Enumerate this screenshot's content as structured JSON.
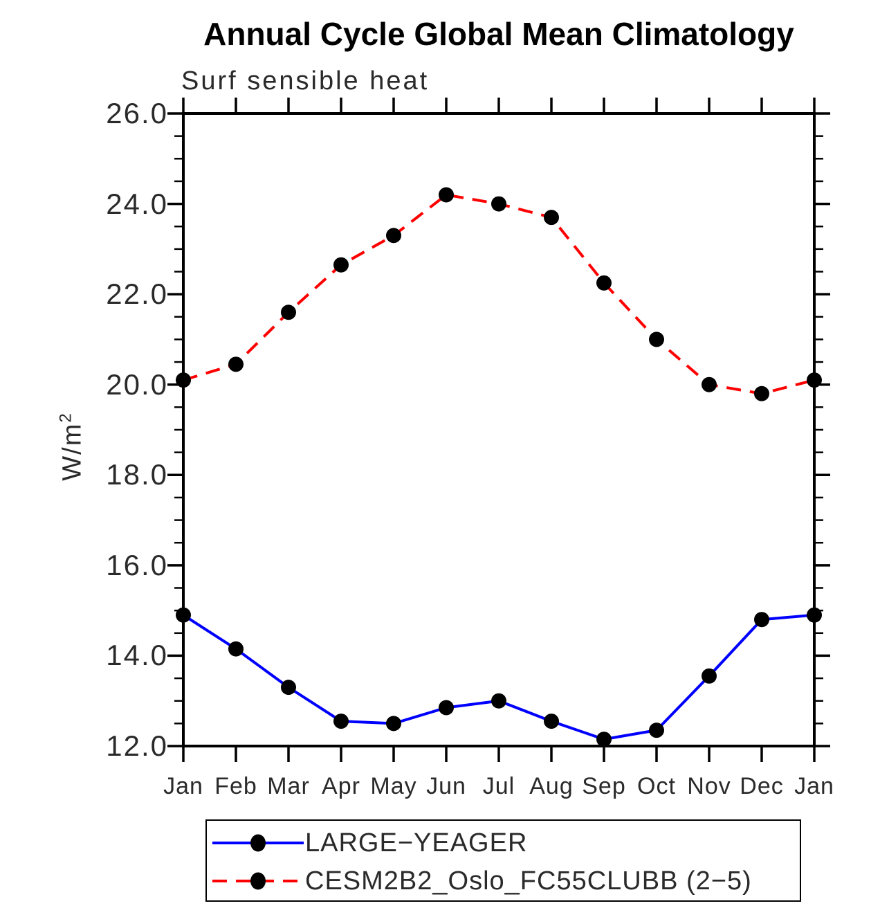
{
  "chart_data": {
    "type": "line",
    "title": "Annual Cycle Global Mean Climatology",
    "subtitle": "Surf sensible heat",
    "ylabel": "W/m²",
    "ylabel_base": "W/m",
    "ylabel_exp": "2",
    "x_categories": [
      "Jan",
      "Feb",
      "Mar",
      "Apr",
      "May",
      "Jun",
      "Jul",
      "Aug",
      "Sep",
      "Oct",
      "Nov",
      "Dec",
      "Jan"
    ],
    "ylim": [
      12.0,
      26.0
    ],
    "ytick_step": 2.0,
    "yminor_step": 0.5,
    "yticklabels": [
      "26.0",
      "24.0",
      "22.0",
      "20.0",
      "18.0",
      "16.0",
      "14.0",
      "12.0"
    ],
    "grid": false,
    "legend_position": "bottom",
    "series": [
      {
        "name": "LARGE−YEAGER",
        "color": "#0000FF",
        "style": "solid",
        "marker": "filled-circle",
        "marker_color": "#000000",
        "values": [
          14.9,
          14.15,
          13.3,
          12.55,
          12.5,
          12.85,
          13.0,
          12.55,
          12.15,
          12.35,
          13.55,
          14.8,
          14.9
        ]
      },
      {
        "name": "CESM2B2_Oslo_FC55CLUBB (2−5)",
        "color": "#FF0000",
        "style": "dashed",
        "marker": "filled-circle",
        "marker_color": "#000000",
        "values": [
          20.1,
          20.45,
          21.6,
          22.65,
          23.3,
          24.2,
          24.0,
          23.7,
          22.25,
          21.0,
          20.0,
          19.8,
          20.1
        ]
      }
    ]
  }
}
